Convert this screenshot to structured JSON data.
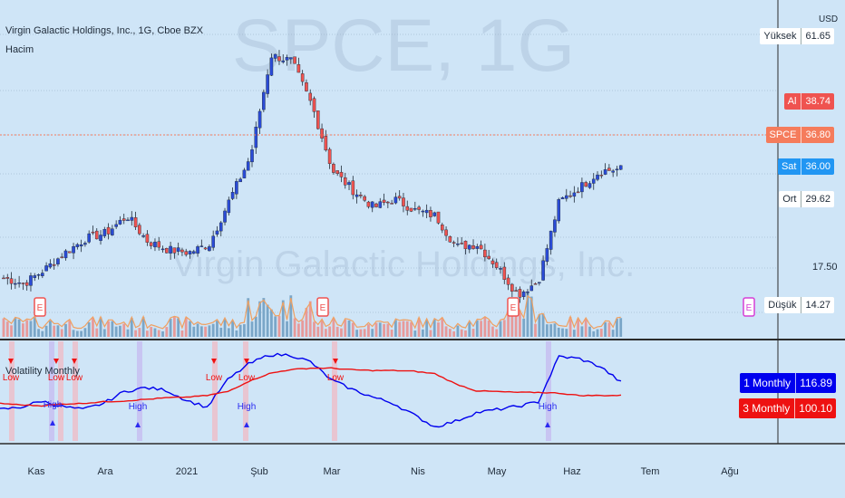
{
  "header": {
    "symbol_title": "Virgin Galactic Holdings, Inc., 1G, Cboe BZX",
    "volume_label": "Hacim",
    "currency": "USD",
    "watermark_ticker": "SPCE, 1G",
    "watermark_name": "Virgin Galactic Holdings, Inc."
  },
  "price_scale": {
    "ticks": [
      "17.50"
    ],
    "tags": [
      {
        "label": "Yüksek",
        "value": "61.65",
        "bg": "#ffffff",
        "fg": "#1e2a38"
      },
      {
        "label": "Al",
        "value": "38.74",
        "bg": "#ef5350",
        "fg": "#ffffff"
      },
      {
        "label": "SPCE",
        "value": "36.80",
        "bg": "#f57c5c",
        "fg": "#ffffff"
      },
      {
        "label": "Sat",
        "value": "36.00",
        "bg": "#2196f3",
        "fg": "#ffffff"
      },
      {
        "label": "Ort",
        "value": "29.62",
        "bg": "#ffffff",
        "fg": "#1e2a38"
      },
      {
        "label": "Düşük",
        "value": "14.27",
        "bg": "#ffffff",
        "fg": "#1e2a38"
      }
    ]
  },
  "indicator": {
    "name": "Volatility Monthly",
    "legend": [
      {
        "label": "1 Monthly",
        "value": "116.89",
        "color": "#0000ee"
      },
      {
        "label": "3 Monthly",
        "value": "100.10",
        "color": "#ee1111"
      }
    ],
    "markers_low": [
      "Low",
      "Low",
      "Low",
      "Low",
      "Low",
      "Low"
    ],
    "markers_high": [
      "High",
      "High",
      "High",
      "High"
    ]
  },
  "earnings_marker": "E",
  "x_axis": {
    "labels": [
      "Kas",
      "Ara",
      "2021",
      "Şub",
      "Mar",
      "Nis",
      "May",
      "Haz",
      "Tem",
      "Ağu"
    ]
  },
  "colors": {
    "up": "#2a4bd7",
    "down": "#ef5350",
    "line_1m": "#0000ee",
    "line_3m": "#ee1111",
    "volume_ma": "#f0a060"
  },
  "chart_data": {
    "type": "line",
    "title": "Virgin Galactic Holdings, Inc., 1G, Cboe BZX",
    "price_series": {
      "name": "SPCE",
      "dates": [
        "Kas",
        "",
        "",
        "",
        "Ara",
        "",
        "",
        "",
        "2021",
        "",
        "",
        "",
        "Şub",
        "",
        "",
        "",
        "Mar",
        "",
        "",
        "",
        "Nis",
        "",
        "",
        "",
        "May",
        "",
        "",
        "",
        "Haz",
        "",
        ""
      ],
      "close": [
        17.5,
        16.5,
        19,
        22,
        24.5,
        25.5,
        28.5,
        24,
        22.5,
        22,
        23.5,
        31.5,
        39,
        57,
        56,
        48,
        36.5,
        33,
        30,
        31.5,
        29.5,
        28.5,
        23,
        23.5,
        19.5,
        14.5,
        17,
        31,
        33.5,
        36.5,
        36.8
      ]
    },
    "volatility_series": [
      {
        "name": "1 Monthly",
        "values": [
          82,
          85,
          93,
          86,
          82,
          90,
          105,
          110,
          107,
          94,
          85,
          120,
          140,
          152,
          152,
          143,
          120,
          108,
          98,
          90,
          75,
          60,
          67,
          78,
          82,
          86,
          92,
          150,
          147,
          137,
          116.89
        ]
      },
      {
        "name": "3 Monthly",
        "values": [
          90,
          88,
          87,
          89,
          90,
          92,
          93,
          95,
          97,
          98,
          100,
          105,
          118,
          128,
          133,
          135,
          135,
          133,
          132,
          132,
          131,
          128,
          115,
          106,
          105,
          104,
          104,
          103,
          100,
          100,
          100.1
        ]
      }
    ],
    "indicator_legend_values": {
      "1 Monthly": 116.89,
      "3 Monthly": 100.1
    },
    "grid": true
  }
}
